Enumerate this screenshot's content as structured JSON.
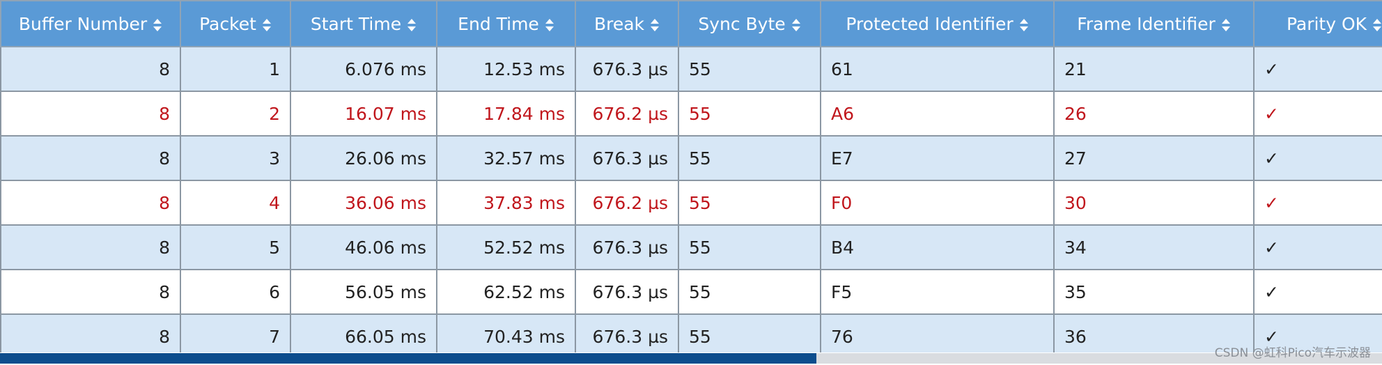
{
  "table": {
    "columns": [
      "Buffer Number",
      "Packet",
      "Start Time",
      "End Time",
      "Break",
      "Sync Byte",
      "Protected Identifier",
      "Frame Identifier",
      "Parity OK"
    ],
    "rows": [
      [
        "8",
        "1",
        "6.076 ms",
        "12.53 ms",
        "676.3 µs",
        "55",
        "61",
        "21",
        "✓"
      ],
      [
        "8",
        "2",
        "16.07 ms",
        "17.84 ms",
        "676.2 µs",
        "55",
        "A6",
        "26",
        "✓"
      ],
      [
        "8",
        "3",
        "26.06 ms",
        "32.57 ms",
        "676.3 µs",
        "55",
        "E7",
        "27",
        "✓"
      ],
      [
        "8",
        "4",
        "36.06 ms",
        "37.83 ms",
        "676.2 µs",
        "55",
        "F0",
        "30",
        "✓"
      ],
      [
        "8",
        "5",
        "46.06 ms",
        "52.52 ms",
        "676.3 µs",
        "55",
        "B4",
        "34",
        "✓"
      ],
      [
        "8",
        "6",
        "56.05 ms",
        "62.52 ms",
        "676.3 µs",
        "55",
        "F5",
        "35",
        "✓"
      ],
      [
        "8",
        "7",
        "66.05 ms",
        "70.43 ms",
        "676.3 µs",
        "55",
        "76",
        "36",
        "✓"
      ]
    ],
    "row_colors": [
      "#222222",
      "#c0161c",
      "#222222",
      "#c0161c",
      "#222222",
      "#222222",
      "#222222"
    ]
  },
  "watermark": "CSDN @虹科Pico汽车示波器"
}
